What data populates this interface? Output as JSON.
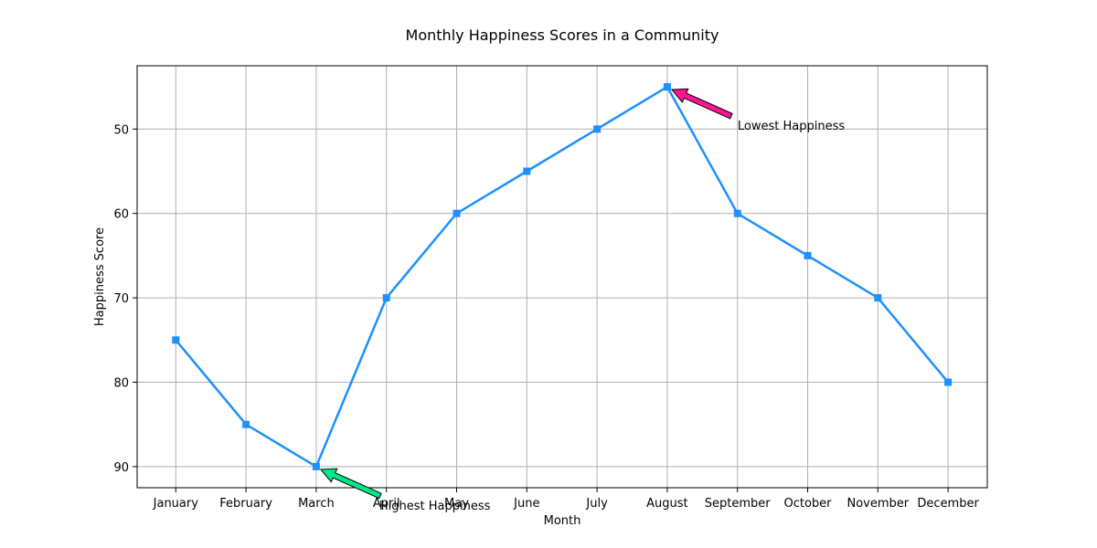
{
  "chart_data": {
    "type": "line",
    "title": "Monthly Happiness Scores in a Community",
    "xlabel": "Month",
    "ylabel": "Happiness Score",
    "categories": [
      "January",
      "February",
      "March",
      "April",
      "May",
      "June",
      "July",
      "August",
      "September",
      "October",
      "November",
      "December"
    ],
    "series": [
      {
        "values": [
          75,
          85,
          90,
          70,
          60,
          55,
          50,
          45,
          60,
          65,
          70,
          80
        ]
      }
    ],
    "ylim": [
      92.5,
      42.5
    ],
    "y_inverted": true,
    "y_ticks": [
      50,
      60,
      70,
      80,
      90
    ],
    "grid": true,
    "line_color": "#1e90ff",
    "marker": "square",
    "annotations": [
      {
        "text": "Highest Happiness",
        "target_category": "March",
        "target_value": 90,
        "color": "#00e68a"
      },
      {
        "text": "Lowest Happiness",
        "target_category": "August",
        "target_value": 45,
        "color": "#ff1493"
      }
    ]
  }
}
